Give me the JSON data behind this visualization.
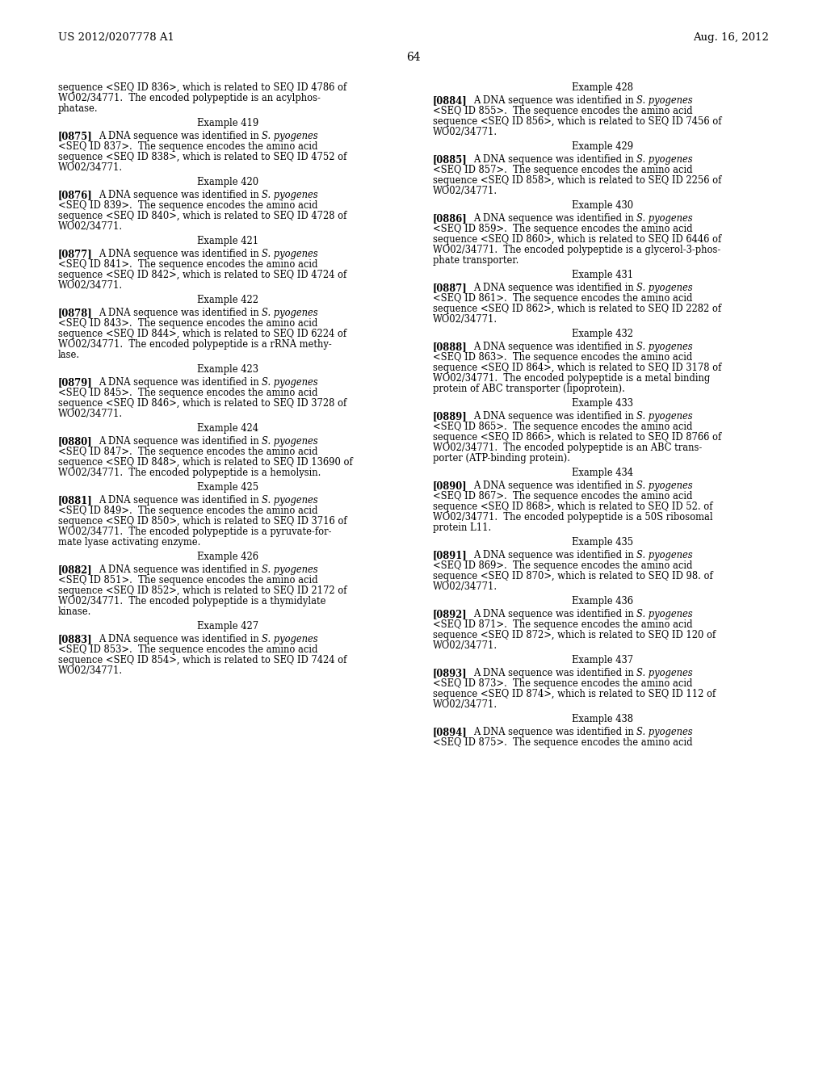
{
  "page_number": "64",
  "header_left": "US 2012/0207778 A1",
  "header_right": "Aug. 16, 2012",
  "background_color": "#ffffff",
  "left_column": [
    {
      "type": "continuation",
      "lines": [
        "sequence <SEQ ID 836>, which is related to SEQ ID 4786 of",
        "WO02/34771.  The encoded polypeptide is an acylphos-",
        "phatase."
      ]
    },
    {
      "type": "heading",
      "text": "Example 419"
    },
    {
      "type": "paragraph",
      "tag": "[0875]",
      "lines": [
        "A DNA sequence was identified in S. pyogenes",
        "<SEQ ID 837>.  The sequence encodes the amino acid",
        "sequence <SEQ ID 838>, which is related to SEQ ID 4752 of",
        "WO02/34771."
      ]
    },
    {
      "type": "heading",
      "text": "Example 420"
    },
    {
      "type": "paragraph",
      "tag": "[0876]",
      "lines": [
        "A DNA sequence was identified in S. pyogenes",
        "<SEQ ID 839>.  The sequence encodes the amino acid",
        "sequence <SEQ ID 840>, which is related to SEQ ID 4728 of",
        "WO02/34771."
      ]
    },
    {
      "type": "heading",
      "text": "Example 421"
    },
    {
      "type": "paragraph",
      "tag": "[0877]",
      "lines": [
        "A DNA sequence was identified in S. pyogenes",
        "<SEQ ID 841>.  The sequence encodes the amino acid",
        "sequence <SEQ ID 842>, which is related to SEQ ID 4724 of",
        "WO02/34771."
      ]
    },
    {
      "type": "heading",
      "text": "Example 422"
    },
    {
      "type": "paragraph",
      "tag": "[0878]",
      "lines": [
        "A DNA sequence was identified in S. pyogenes",
        "<SEQ ID 843>.  The sequence encodes the amino acid",
        "sequence <SEQ ID 844>, which is related to SEQ ID 6224 of",
        "WO02/34771.  The encoded polypeptide is a rRNA methy-",
        "lase."
      ]
    },
    {
      "type": "heading",
      "text": "Example 423"
    },
    {
      "type": "paragraph",
      "tag": "[0879]",
      "lines": [
        "A DNA sequence was identified in S. pyogenes",
        "<SEQ ID 845>.  The sequence encodes the amino acid",
        "sequence <SEQ ID 846>, which is related to SEQ ID 3728 of",
        "WO02/34771."
      ]
    },
    {
      "type": "heading",
      "text": "Example 424"
    },
    {
      "type": "paragraph",
      "tag": "[0880]",
      "lines": [
        "A DNA sequence was identified in S. pyogenes",
        "<SEQ ID 847>.  The sequence encodes the amino acid",
        "sequence <SEQ ID 848>, which is related to SEQ ID 13690 of",
        "WO02/34771.  The encoded polypeptide is a hemolysin."
      ]
    },
    {
      "type": "heading",
      "text": "Example 425"
    },
    {
      "type": "paragraph",
      "tag": "[0881]",
      "lines": [
        "A DNA sequence was identified in S. pyogenes",
        "<SEQ ID 849>.  The sequence encodes the amino acid",
        "sequence <SEQ ID 850>, which is related to SEQ ID 3716 of",
        "WO02/34771.  The encoded polypeptide is a pyruvate-for-",
        "mate lyase activating enzyme."
      ]
    },
    {
      "type": "heading",
      "text": "Example 426"
    },
    {
      "type": "paragraph",
      "tag": "[0882]",
      "lines": [
        "A DNA sequence was identified in S. pyogenes",
        "<SEQ ID 851>.  The sequence encodes the amino acid",
        "sequence <SEQ ID 852>, which is related to SEQ ID 2172 of",
        "WO02/34771.  The encoded polypeptide is a thymidylate",
        "kinase."
      ]
    },
    {
      "type": "heading",
      "text": "Example 427"
    },
    {
      "type": "paragraph",
      "tag": "[0883]",
      "lines": [
        "A DNA sequence was identified in S. pyogenes",
        "<SEQ ID 853>.  The sequence encodes the amino acid",
        "sequence <SEQ ID 854>, which is related to SEQ ID 7424 of",
        "WO02/34771."
      ]
    }
  ],
  "right_column": [
    {
      "type": "heading",
      "text": "Example 428"
    },
    {
      "type": "paragraph",
      "tag": "[0884]",
      "lines": [
        "A DNA sequence was identified in S. pyogenes",
        "<SEQ ID 855>.  The sequence encodes the amino acid",
        "sequence <SEQ ID 856>, which is related to SEQ ID 7456 of",
        "WO02/34771."
      ]
    },
    {
      "type": "heading",
      "text": "Example 429"
    },
    {
      "type": "paragraph",
      "tag": "[0885]",
      "lines": [
        "A DNA sequence was identified in S. pyogenes",
        "<SEQ ID 857>.  The sequence encodes the amino acid",
        "sequence <SEQ ID 858>, which is related to SEQ ID 2256 of",
        "WO02/34771."
      ]
    },
    {
      "type": "heading",
      "text": "Example 430"
    },
    {
      "type": "paragraph",
      "tag": "[0886]",
      "lines": [
        "A DNA sequence was identified in S. pyogenes",
        "<SEQ ID 859>.  The sequence encodes the amino acid",
        "sequence <SEQ ID 860>, which is related to SEQ ID 6446 of",
        "WO02/34771.  The encoded polypeptide is a glycerol-3-phos-",
        "phate transporter."
      ]
    },
    {
      "type": "heading",
      "text": "Example 431"
    },
    {
      "type": "paragraph",
      "tag": "[0887]",
      "lines": [
        "A DNA sequence was identified in S. pyogenes",
        "<SEQ ID 861>.  The sequence encodes the amino acid",
        "sequence <SEQ ID 862>, which is related to SEQ ID 2282 of",
        "WO02/34771."
      ]
    },
    {
      "type": "heading",
      "text": "Example 432"
    },
    {
      "type": "paragraph",
      "tag": "[0888]",
      "lines": [
        "A DNA sequence was identified in S. pyogenes",
        "<SEQ ID 863>.  The sequence encodes the amino acid",
        "sequence <SEQ ID 864>, which is related to SEQ ID 3178 of",
        "WO02/34771.  The encoded polypeptide is a metal binding",
        "protein of ABC transporter (lipoprotein)."
      ]
    },
    {
      "type": "heading",
      "text": "Example 433"
    },
    {
      "type": "paragraph",
      "tag": "[0889]",
      "lines": [
        "A DNA sequence was identified in S. pyogenes",
        "<SEQ ID 865>.  The sequence encodes the amino acid",
        "sequence <SEQ ID 866>, which is related to SEQ ID 8766 of",
        "WO02/34771.  The encoded polypeptide is an ABC trans-",
        "porter (ATP-binding protein)."
      ]
    },
    {
      "type": "heading",
      "text": "Example 434"
    },
    {
      "type": "paragraph",
      "tag": "[0890]",
      "lines": [
        "A DNA sequence was identified in S. pyogenes",
        "<SEQ ID 867>.  The sequence encodes the amino acid",
        "sequence <SEQ ID 868>, which is related to SEQ ID 52. of",
        "WO02/34771.  The encoded polypeptide is a 50S ribosomal",
        "protein L11."
      ]
    },
    {
      "type": "heading",
      "text": "Example 435"
    },
    {
      "type": "paragraph",
      "tag": "[0891]",
      "lines": [
        "A DNA sequence was identified in S. pyogenes",
        "<SEQ ID 869>.  The sequence encodes the amino acid",
        "sequence <SEQ ID 870>, which is related to SEQ ID 98. of",
        "WO02/34771."
      ]
    },
    {
      "type": "heading",
      "text": "Example 436"
    },
    {
      "type": "paragraph",
      "tag": "[0892]",
      "lines": [
        "A DNA sequence was identified in S. pyogenes",
        "<SEQ ID 871>.  The sequence encodes the amino acid",
        "sequence <SEQ ID 872>, which is related to SEQ ID 120 of",
        "WO02/34771."
      ]
    },
    {
      "type": "heading",
      "text": "Example 437"
    },
    {
      "type": "paragraph",
      "tag": "[0893]",
      "lines": [
        "A DNA sequence was identified in S. pyogenes",
        "<SEQ ID 873>.  The sequence encodes the amino acid",
        "sequence <SEQ ID 874>, which is related to SEQ ID 112 of",
        "WO02/34771."
      ]
    },
    {
      "type": "heading",
      "text": "Example 438"
    },
    {
      "type": "paragraph",
      "tag": "[0894]",
      "lines": [
        "A DNA sequence was identified in S. pyogenes",
        "<SEQ ID 875>.  The sequence encodes the amino acid"
      ]
    }
  ]
}
